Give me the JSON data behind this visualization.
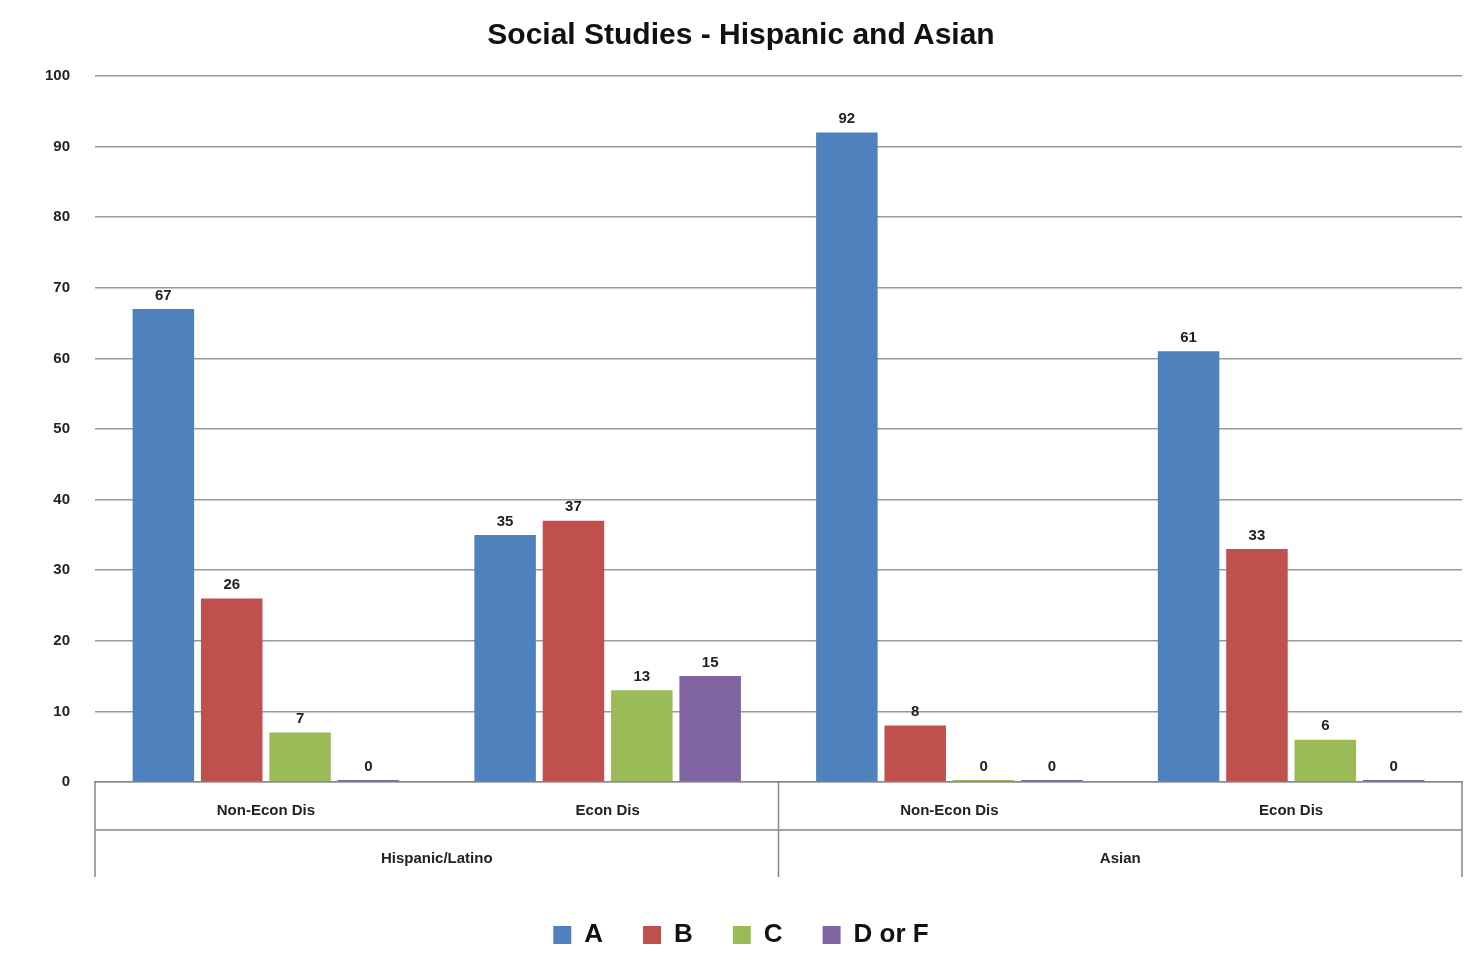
{
  "chart_data": {
    "type": "bar",
    "title": "Social Studies - Hispanic and Asian",
    "categories": [
      "Non-Econ Dis",
      "Econ Dis",
      "Non-Econ Dis",
      "Econ Dis"
    ],
    "annotations": [
      "Hispanic/Latino",
      "Asian"
    ],
    "series": [
      {
        "name": "A",
        "color": "#4f81bd",
        "values": [
          67,
          35,
          92,
          61
        ]
      },
      {
        "name": "B",
        "color": "#c0504d",
        "values": [
          26,
          37,
          8,
          33
        ]
      },
      {
        "name": "C",
        "color": "#9bbb59",
        "values": [
          7,
          13,
          0,
          6
        ]
      },
      {
        "name": "D or F",
        "color": "#8064a2",
        "values": [
          0,
          15,
          0,
          0
        ]
      }
    ],
    "ylim": [
      0,
      100
    ],
    "yticks": [
      0,
      10,
      20,
      30,
      40,
      50,
      60,
      70,
      80,
      90,
      100
    ],
    "grid": "y",
    "legend": "bottom",
    "data_labels": true
  }
}
